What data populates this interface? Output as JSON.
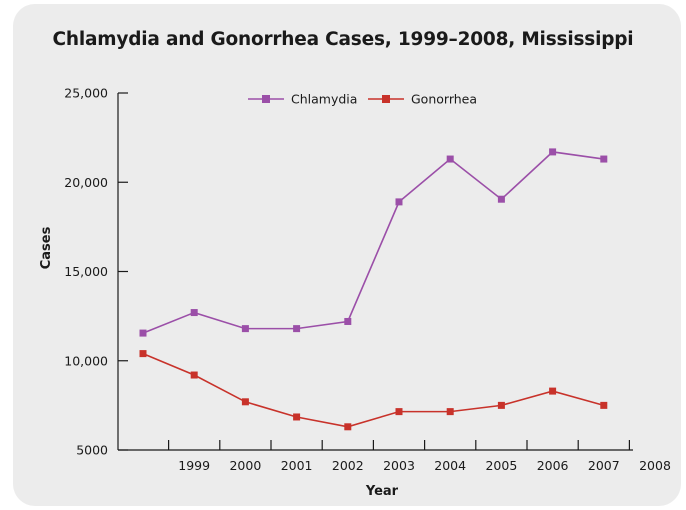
{
  "chart_data": {
    "type": "line",
    "title": "Chlamydia and Gonorrhea Cases, 1999–2008, Mississippi",
    "xlabel": "Year",
    "ylabel": "Cases",
    "x_tick_labels": [
      "1999",
      "2000",
      "2001",
      "2002",
      "2003",
      "2004",
      "2005",
      "2006",
      "2007",
      "2008"
    ],
    "y_ticks": [
      5000,
      10000,
      15000,
      20000,
      25000
    ],
    "y_tick_labels": [
      "5000",
      "10,000",
      "15,000",
      "20,000",
      "25,000"
    ],
    "ylim": [
      5000,
      25000
    ],
    "grid": false,
    "legend_position": "top-center",
    "series": [
      {
        "name": "Chlamydia",
        "color": "#9b4fa8",
        "values": [
          11550,
          12700,
          11800,
          11800,
          12200,
          18900,
          21300,
          19050,
          21700,
          21300
        ]
      },
      {
        "name": "Gonorrhea",
        "color": "#c8322a",
        "values": [
          10400,
          9200,
          7700,
          6850,
          6300,
          7150,
          7150,
          7500,
          8300,
          7500
        ]
      }
    ]
  }
}
